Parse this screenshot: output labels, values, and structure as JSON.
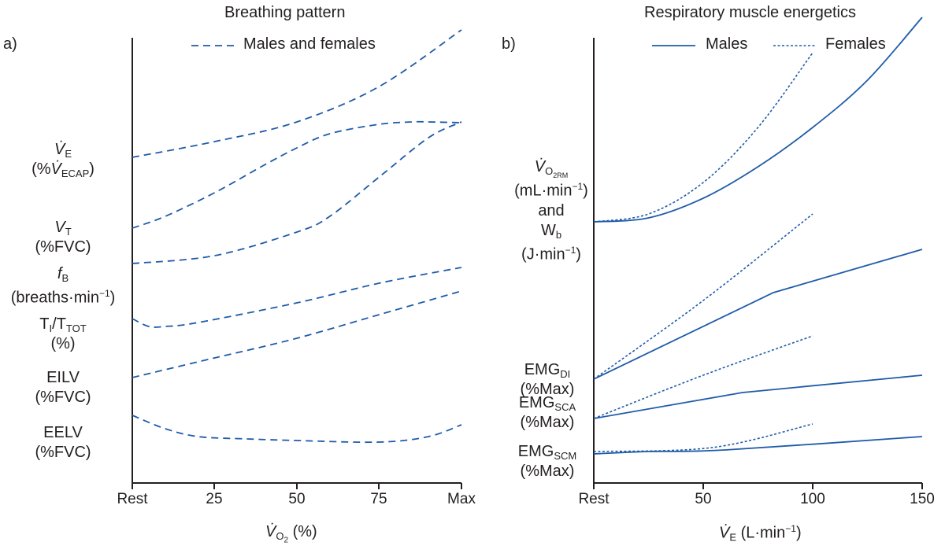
{
  "chart_data": [
    {
      "panel": "a)",
      "type": "line",
      "title": "Breathing pattern",
      "legend": [
        {
          "label": "Males and females",
          "style": "dashed"
        }
      ],
      "xlabel": "V̇O2 (%)",
      "x_ticks": [
        "Rest",
        "25",
        "50",
        "75",
        "Max"
      ],
      "x_tick_values": [
        0,
        25,
        50,
        75,
        100
      ],
      "xlim": [
        0,
        100
      ],
      "y_unit_note": "relative, no numeric y axis",
      "y_labels": [
        {
          "lines": [
            "V̇E",
            "(%V̇ECAP)"
          ]
        },
        {
          "lines": [
            "VT",
            "(%FVC)"
          ]
        },
        {
          "lines": [
            "fB",
            "(breaths·min⁻¹)"
          ]
        },
        {
          "lines": [
            "TI/TTOT",
            "(%)"
          ]
        },
        {
          "lines": [
            "EILV",
            "(%FVC)"
          ]
        },
        {
          "lines": [
            "EELV",
            "(%FVC)"
          ]
        }
      ],
      "series": [
        {
          "name": "V̇E",
          "style": "dashed",
          "x": [
            0,
            25,
            50,
            75,
            100
          ],
          "y": [
            100,
            120,
            145,
            190,
            262
          ]
        },
        {
          "name": "VT",
          "style": "dashed",
          "x": [
            0,
            10,
            25,
            40,
            50,
            60,
            75,
            85,
            90,
            100
          ],
          "y": [
            10,
            25,
            55,
            90,
            112,
            130,
            142,
            145,
            145,
            144
          ]
        },
        {
          "name": "fB",
          "style": "dashed",
          "x": [
            0,
            25,
            50,
            60,
            75,
            90,
            100
          ],
          "y": [
            -35,
            -25,
            5,
            25,
            75,
            125,
            145
          ]
        },
        {
          "name": "TI/TTOT",
          "style": "dashed",
          "x": [
            0,
            5,
            10,
            20,
            50,
            75,
            100
          ],
          "y": [
            -105,
            -115,
            -115,
            -110,
            -85,
            -60,
            -40
          ]
        },
        {
          "name": "EILV",
          "style": "dashed",
          "x": [
            0,
            25,
            50,
            75,
            100
          ],
          "y": [
            -180,
            -155,
            -130,
            -100,
            -70
          ]
        },
        {
          "name": "EELV",
          "style": "dashed",
          "x": [
            0,
            10,
            20,
            35,
            50,
            75,
            90,
            100
          ],
          "y": [
            -228,
            -245,
            -255,
            -258,
            -260,
            -262,
            -255,
            -240
          ]
        }
      ]
    },
    {
      "panel": "b)",
      "type": "line",
      "title": "Respiratory muscle energetics",
      "legend": [
        {
          "label": "Males",
          "style": "solid"
        },
        {
          "label": "Females",
          "style": "dotted"
        }
      ],
      "xlabel": "V̇E (L·min⁻¹)",
      "x_ticks": [
        "Rest",
        "50",
        "100",
        "150"
      ],
      "x_tick_values": [
        0,
        50,
        100,
        150
      ],
      "xlim": [
        0,
        150
      ],
      "y_unit_note": "relative, no numeric y axis",
      "y_labels": [
        {
          "lines": [
            "V̇O2RM",
            "(mL·min⁻¹)",
            "and",
            "Wb",
            "(J·min⁻¹)"
          ]
        },
        {
          "lines": [
            "EMGDI",
            "(%Max)"
          ]
        },
        {
          "lines": [
            "EMGSCA",
            "(%Max)"
          ]
        },
        {
          "lines": [
            "EMGSCM",
            "(%Max)"
          ]
        }
      ],
      "series": [
        {
          "name": "V̇O2RM and Wb (males)",
          "style": "solid",
          "x": [
            0,
            25,
            50,
            75,
            100,
            125,
            150
          ],
          "y": [
            300,
            305,
            330,
            370,
            420,
            480,
            560
          ]
        },
        {
          "name": "V̇O2RM and Wb (females)",
          "style": "dotted",
          "x": [
            0,
            25,
            50,
            75,
            100
          ],
          "y": [
            300,
            310,
            350,
            420,
            515
          ]
        },
        {
          "name": "EMGDI (males)",
          "style": "solid",
          "x": [
            0,
            82,
            150
          ],
          "y": [
            100,
            210,
            265
          ]
        },
        {
          "name": "EMGDI (females)",
          "style": "dotted",
          "x": [
            0,
            50,
            100
          ],
          "y": [
            100,
            200,
            310
          ]
        },
        {
          "name": "EMGSCA (males)",
          "style": "solid",
          "x": [
            0,
            68,
            150
          ],
          "y": [
            50,
            83,
            105
          ]
        },
        {
          "name": "EMGSCA (females)",
          "style": "dotted",
          "x": [
            0,
            50,
            100
          ],
          "y": [
            50,
            105,
            155
          ]
        },
        {
          "name": "EMGSCM (males)",
          "style": "solid",
          "x": [
            0,
            25,
            60,
            150
          ],
          "y": [
            5,
            8,
            10,
            27
          ]
        },
        {
          "name": "EMGSCM (females)",
          "style": "dotted",
          "x": [
            0,
            54,
            100
          ],
          "y": [
            8,
            13,
            43
          ]
        }
      ]
    }
  ],
  "colors": {
    "line": "#1f5ba8",
    "axis": "#231f20",
    "text": "#231f20"
  }
}
